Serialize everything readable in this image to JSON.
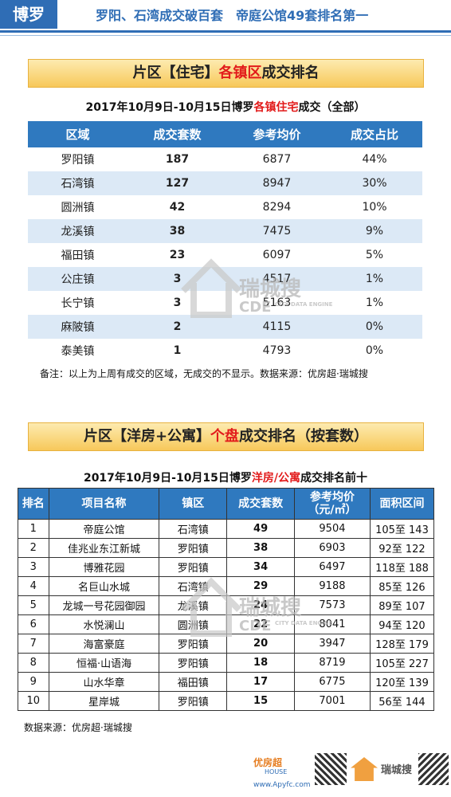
{
  "header": {
    "tag": "博罗",
    "title": "罗阳、石湾成交破百套　帝庭公馆49套排名第一"
  },
  "section1": {
    "banner": [
      "片区【住宅】",
      "各镇区",
      "成交排名"
    ],
    "subtitle": [
      "2017年10月9日-10月15日博罗",
      "各镇住宅",
      "成交（全部）"
    ],
    "table": {
      "columns": [
        "区域",
        "成交套数",
        "参考均价",
        "成交占比"
      ],
      "rows": [
        [
          "罗阳镇",
          "187",
          "6877",
          "44%"
        ],
        [
          "石湾镇",
          "127",
          "8947",
          "30%"
        ],
        [
          "圆洲镇",
          "42",
          "8294",
          "10%"
        ],
        [
          "龙溪镇",
          "38",
          "7475",
          "9%"
        ],
        [
          "福田镇",
          "23",
          "6097",
          "5%"
        ],
        [
          "公庄镇",
          "3",
          "4517",
          "1%"
        ],
        [
          "长宁镇",
          "3",
          "5163",
          "1%"
        ],
        [
          "麻陂镇",
          "2",
          "4115",
          "0%"
        ],
        [
          "泰美镇",
          "1",
          "4793",
          "0%"
        ]
      ]
    },
    "note": "备注：以上为上周有成交的区域，无成交的不显示。数据来源：优房超·瑞城搜"
  },
  "section2": {
    "banner": [
      "片区【洋房+公寓】",
      "个盘",
      "成交排名（按套数）"
    ],
    "subtitle": [
      "2017年10月9日-10月15日博罗",
      "洋房/公寓",
      "成交排名前十"
    ],
    "table": {
      "columns": [
        "排名",
        "项目名称",
        "镇区",
        "成交套数",
        [
          "参考均价",
          "（元/㎡）"
        ],
        "面积区间"
      ],
      "rows": [
        [
          "1",
          "帝庭公馆",
          "石湾镇",
          "49",
          "9504",
          "105至 143"
        ],
        [
          "2",
          "佳兆业东江新城",
          "罗阳镇",
          "38",
          "6903",
          "92至 122"
        ],
        [
          "3",
          "博雅花园",
          "罗阳镇",
          "34",
          "6497",
          "118至 188"
        ],
        [
          "4",
          "名巨山水城",
          "石湾镇",
          "29",
          "9188",
          "85至 126"
        ],
        [
          "5",
          "龙城一号花园御园",
          "龙溪镇",
          "24",
          "7573",
          "89至 107"
        ],
        [
          "6",
          "水悦澜山",
          "圆洲镇",
          "22",
          "8041",
          "94至 120"
        ],
        [
          "7",
          "海富豪庭",
          "罗阳镇",
          "20",
          "3947",
          "128至 179"
        ],
        [
          "8",
          "恒福·山语海",
          "罗阳镇",
          "18",
          "8719",
          "105至 227"
        ],
        [
          "9",
          "山水华章",
          "福田镇",
          "17",
          "6775",
          "120至 139"
        ],
        [
          "10",
          "星岸城",
          "罗阳镇",
          "15",
          "7001",
          "56至 144"
        ]
      ]
    },
    "note": "数据来源：优房超·瑞城搜"
  },
  "watermark": {
    "name": "瑞城搜",
    "mark": "CDE",
    "sub": "CITY DATA ENGINE"
  },
  "footer": {
    "logo1": "优房超",
    "logo1_sub": "HOUSE",
    "url": "www.Apyfc.com",
    "logo2": "瑞城搜"
  }
}
